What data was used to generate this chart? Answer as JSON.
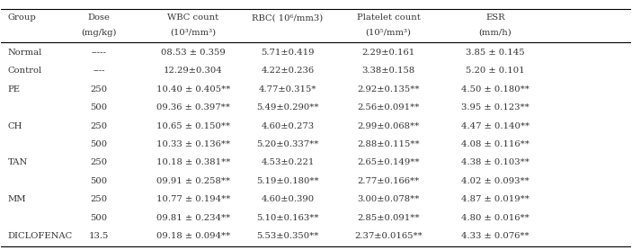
{
  "col_headers": [
    [
      "Group",
      "",
      "Dose\n(mg/kg)",
      "WBC count\n(10³/mm³)",
      "RBC( 10⁶/mm3)",
      "Platelet count\n(10⁵/mm³)",
      "ESR\n(mm/h)"
    ]
  ],
  "rows": [
    [
      "Normal",
      "-----",
      "08.53 ± 0.359",
      "5.71±0.419",
      "2.29±0.161",
      "3.85 ± 0.145"
    ],
    [
      "Control",
      "----",
      "12.29±0.304",
      "4.22±0.236",
      "3.38±0.158",
      "5.20 ± 0.101"
    ],
    [
      "PE",
      "250",
      "10.40 ± 0.405**",
      "4.77±0.315*",
      "2.92±0.135**",
      "4.50 ± 0.180**"
    ],
    [
      "",
      "500",
      "09.36 ± 0.397**",
      "5.49±0.290**",
      "2.56±0.091**",
      "3.95 ± 0.123**"
    ],
    [
      "CH",
      "250",
      "10.65 ± 0.150**",
      "4.60±0.273",
      "2.99±0.068**",
      "4.47 ± 0.140**"
    ],
    [
      "",
      "500",
      "10.33 ± 0.136**",
      "5.20±0.337**",
      "2.88±0.115**",
      "4.08 ± 0.116**"
    ],
    [
      "TAN",
      "250",
      "10.18 ± 0.381**",
      "4.53±0.221",
      "2.65±0.149**",
      "4.38 ± 0.103**"
    ],
    [
      "",
      "500",
      "09.91 ± 0.258**",
      "5.19±0.180**",
      "2.77±0.166**",
      "4.02 ± 0.093**"
    ],
    [
      "MM",
      "250",
      "10.77 ± 0.194**",
      "4.60±0.390",
      "3.00±0.078**",
      "4.87 ± 0.019**"
    ],
    [
      "",
      "500",
      "09.81 ± 0.234**",
      "5.10±0.163**",
      "2.85±0.091**",
      "4.80 ± 0.016**"
    ],
    [
      "DICLOFENAC",
      "13.5",
      "09.18 ± 0.094**",
      "5.53±0.350**",
      "2.37±0.0165**",
      "4.33 ± 0.076**"
    ]
  ],
  "header_line1": [
    "Group",
    "Dose",
    "WBC count",
    "RBC( 10⁶/mm3)",
    "Platelet count",
    "ESR"
  ],
  "header_line2": [
    "",
    "(mg/kg)",
    "(10³/mm³)",
    "",
    "(10⁵/mm³)",
    "(mm/h)"
  ],
  "bg_color": "#f5f5f5",
  "text_color": "#333333",
  "font_size": 7.2
}
